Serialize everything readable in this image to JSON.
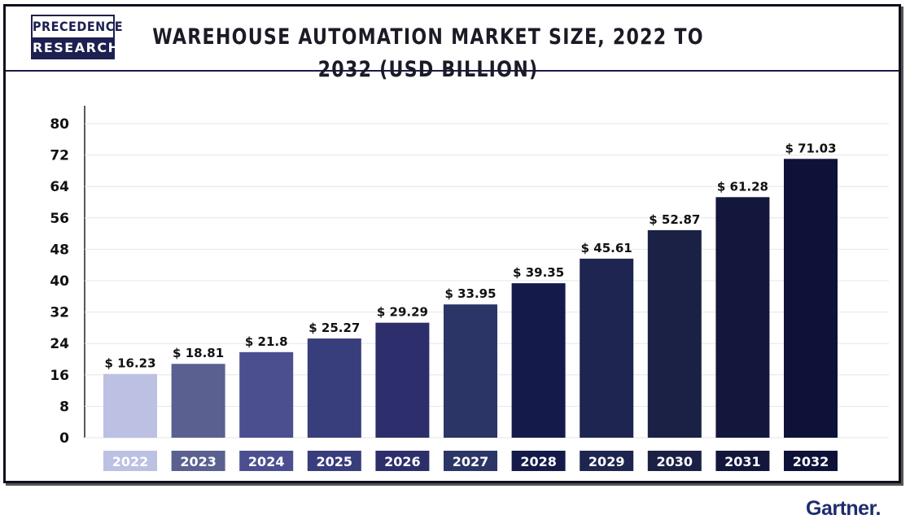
{
  "brand": {
    "logo_line1": "PRECEDENCE",
    "logo_line2": "RESEARCH",
    "footer_brand": "Gartner",
    "footer_dot": "."
  },
  "chart_data": {
    "type": "bar",
    "title": "WAREHOUSE AUTOMATION MARKET SIZE, 2022 TO 2032 (USD BILLION)",
    "xlabel": "",
    "ylabel": "",
    "ylim": [
      0,
      80
    ],
    "yticks": [
      0,
      8,
      16,
      24,
      32,
      40,
      48,
      56,
      64,
      72,
      80
    ],
    "grid": true,
    "categories": [
      "2022",
      "2023",
      "2024",
      "2025",
      "2026",
      "2027",
      "2028",
      "2029",
      "2030",
      "2031",
      "2032"
    ],
    "values": [
      16.23,
      18.81,
      21.8,
      25.27,
      29.29,
      33.95,
      39.35,
      45.61,
      52.87,
      61.28,
      71.03
    ],
    "data_labels": [
      "$ 16.23",
      "$ 18.81",
      "$ 21.8",
      "$ 25.27",
      "$ 29.29",
      "$ 33.95",
      "$ 39.35",
      "$ 45.61",
      "$ 52.87",
      "$ 61.28",
      "$ 71.03"
    ],
    "bar_colors": [
      "#bcc0e3",
      "#5a6190",
      "#4b4f8f",
      "#383d7c",
      "#2d2f6d",
      "#2b3566",
      "#141a4a",
      "#1e2550",
      "#1b2145",
      "#14173c",
      "#0f1238"
    ],
    "label_colors": [
      "#bcc0e3",
      "#5a6190",
      "#4b4f8f",
      "#383d7c",
      "#2d2f6d",
      "#2b3566",
      "#141a4a",
      "#1e2550",
      "#1b2145",
      "#14173c",
      "#0f1238"
    ]
  }
}
